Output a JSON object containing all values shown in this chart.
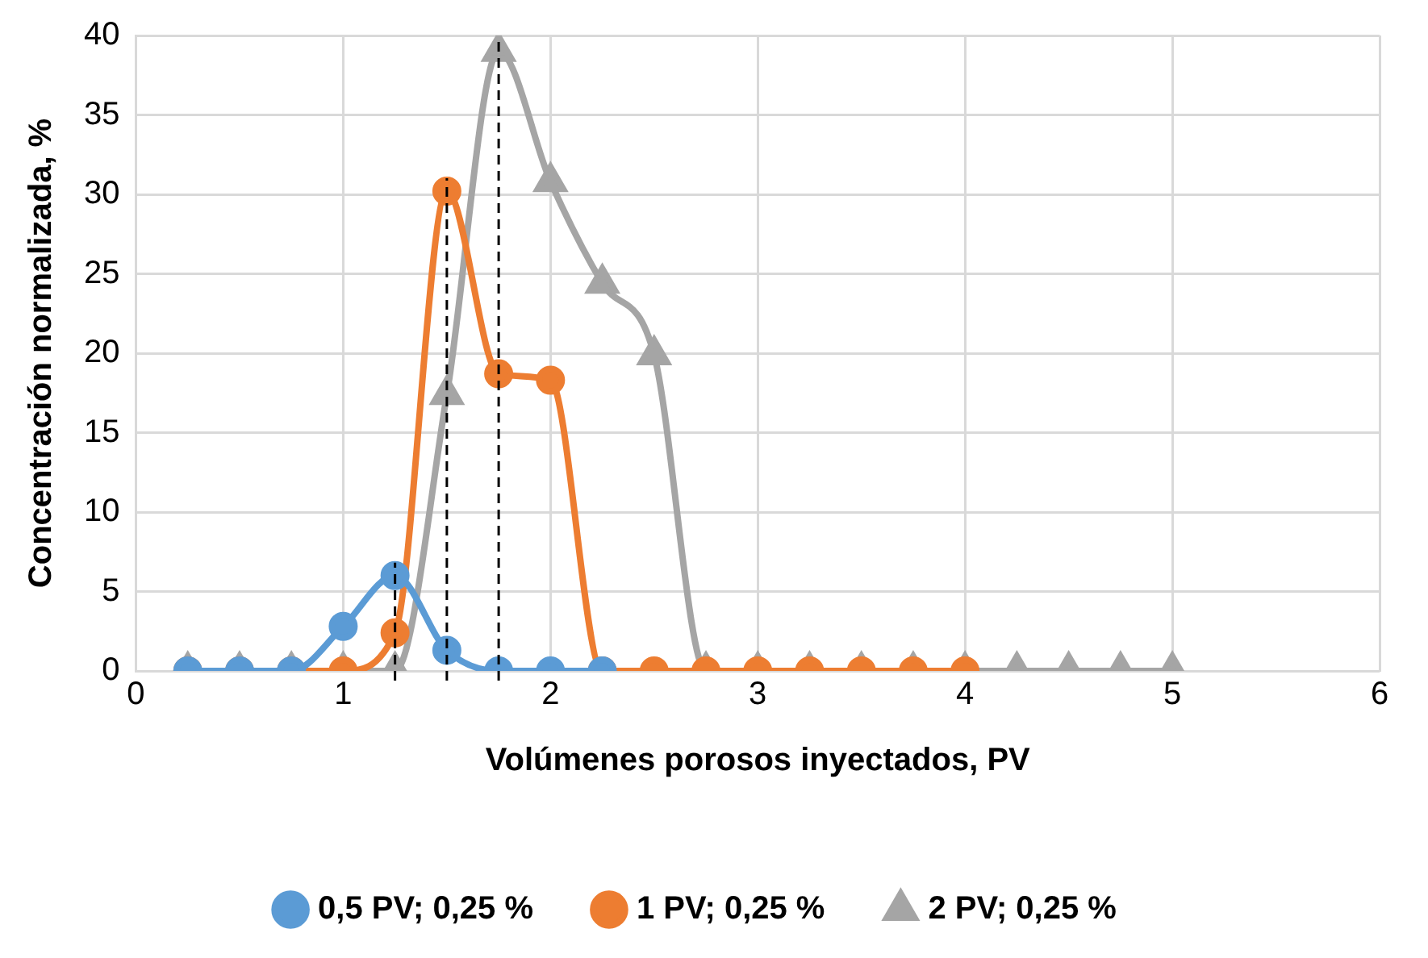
{
  "chart_data": {
    "type": "line",
    "xlabel": "Volúmenes porosos inyectados, PV",
    "ylabel": "Concentración normalizada, %",
    "xlim": [
      0,
      6
    ],
    "xticks": [
      0,
      1,
      2,
      3,
      4,
      5,
      6
    ],
    "ylim": [
      0,
      40
    ],
    "yticks": [
      0,
      5,
      10,
      15,
      20,
      25,
      30,
      35,
      40
    ],
    "grid": true,
    "legend": "bottom",
    "series": [
      {
        "name": "0,5 PV; 0,25 %",
        "color": "#5b9bd5",
        "marker": "circle",
        "x": [
          0.25,
          0.5,
          0.75,
          1,
          1.25,
          1.5,
          1.75,
          2,
          2.25
        ],
        "values": [
          0,
          0,
          0,
          2.8,
          6,
          1.3,
          0,
          0,
          0
        ]
      },
      {
        "name": "1 PV; 0,25 %",
        "color": "#ed7d31",
        "marker": "circle",
        "x": [
          0.25,
          0.5,
          0.75,
          1,
          1.25,
          1.5,
          1.75,
          2,
          2.25,
          2.5,
          2.75,
          3,
          3.25,
          3.5,
          3.75,
          4
        ],
        "values": [
          0,
          0,
          0,
          0,
          2.4,
          30.2,
          18.7,
          18.3,
          0,
          0,
          0,
          0,
          0,
          0,
          0,
          0
        ]
      },
      {
        "name": "2 PV; 0,25 %",
        "color": "#a5a5a5",
        "marker": "triangle",
        "x": [
          0.25,
          0.5,
          0.75,
          1,
          1.25,
          1.5,
          1.75,
          2,
          2.25,
          2.5,
          2.75,
          3,
          3.25,
          3.5,
          3.75,
          4,
          4.25,
          4.5,
          4.75,
          5
        ],
        "values": [
          0,
          0,
          0,
          0,
          0,
          17.4,
          39,
          30.8,
          24.4,
          19.9,
          0,
          0,
          0,
          0,
          0,
          0,
          0,
          0,
          0,
          0
        ]
      }
    ],
    "ref_lines": [
      {
        "axis": "x",
        "value": 1.25,
        "color": "#000000",
        "line_style": "dashed"
      },
      {
        "axis": "x",
        "value": 1.5,
        "color": "#000000",
        "line_style": "dashed"
      },
      {
        "axis": "x",
        "value": 1.75,
        "color": "#000000",
        "line_style": "dashed"
      }
    ]
  }
}
